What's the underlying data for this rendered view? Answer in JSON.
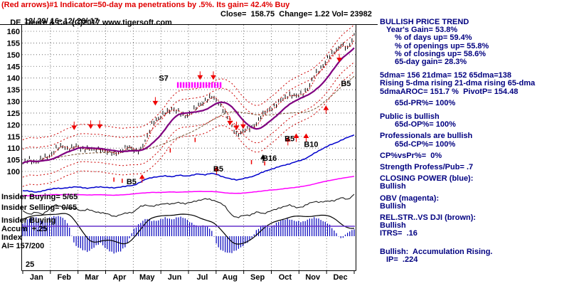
{
  "header": {
    "indicator_line": "(Red arrows)#1 Indicator=50-day ma penetrations by .5%. Its gain= 42.4% Buy",
    "title": "DE  Deere & Co  (C)2017 www.tigersoft.com",
    "quote": "Close=  158.75  Change= 1.22 Vol= 23982",
    "date_range": "12/ 29/ 16- 12/ 26/ 17"
  },
  "left_labels": {
    "insider_buying": "Insider Buying= 5/65",
    "insider_selling": "Insider Selling= 0/65",
    "accum_lines": [
      "Insider Buying",
      "Accum  +.25",
      "Index",
      "AI= 157/200"
    ],
    "bottom_scale": "25"
  },
  "right_panel": {
    "text_color": "#000080",
    "lines": [
      {
        "t": "BULLISH PRICE TREND"
      },
      {
        "t": "Year's Gain= 53.8%"
      },
      {
        "t": "% of days up= 59.4%"
      },
      {
        "t": "% of openings up= 55.8%"
      },
      {
        "t": "% of closings up= 58.6%"
      },
      {
        "t": "65-day gain= 28.3%"
      },
      {
        "t": "5dma= 156 21dma= 152 65dma=138"
      },
      {
        "t": "Rising 5-dma rising 21-dma rising 65-dma"
      },
      {
        "t": "5dmaAROC= 151.7 %  PivotP= 154.48"
      },
      {
        "t": "65d-PR%= 100%"
      },
      {
        "t": "Public is bullish"
      },
      {
        "t": "65d-OP%= 100%"
      },
      {
        "t": "Professionals are bullish"
      },
      {
        "t": "65d-CP%= 100%"
      },
      {
        "t": "CP%vsPr%=  0%"
      },
      {
        "t": "Strength Profess/Pub= .7"
      },
      {
        "t": "CLOSING POWER (blue):"
      },
      {
        "t": "Bullish"
      },
      {
        "t": "OBV (magenta):"
      },
      {
        "t": "Bullish"
      },
      {
        "t": "REL.STR..VS DJI (brown):"
      },
      {
        "t": "Bullish"
      },
      {
        "t": "ITRS=  .16"
      },
      {
        "t": "Bullish:  Accumulation Rising."
      },
      {
        "t": "IP=  .224"
      }
    ]
  },
  "chart_data": {
    "type": "line",
    "symbol": "DE",
    "company": "Deere & Co",
    "close": 158.75,
    "change": 1.22,
    "volume": 23982,
    "date_range": "12/29/16 - 12/26/17",
    "ylim": [
      100,
      160
    ],
    "yticks": [
      100,
      105,
      110,
      115,
      120,
      125,
      130,
      135,
      140,
      145,
      150,
      155,
      160
    ],
    "months": [
      "Jan",
      "Feb",
      "Mar",
      "Apr",
      "May",
      "Jun",
      "Jul",
      "Aug",
      "Sep",
      "Oct",
      "Nov",
      "Dec"
    ],
    "price_weekly": [
      103.5,
      104.8,
      104.2,
      105.5,
      106.2,
      109.8,
      110.5,
      109.9,
      110.8,
      109.5,
      110.2,
      108.9,
      109.6,
      108.4,
      107.2,
      108.8,
      110.3,
      109.5,
      108.7,
      113.5,
      121.8,
      122.5,
      125.5,
      127.0,
      125.0,
      123.8,
      125.5,
      128.0,
      130.5,
      131.8,
      130.2,
      126.0,
      119.5,
      116.0,
      117.2,
      118.5,
      121.0,
      124.5,
      126.8,
      128.5,
      131.0,
      133.2,
      131.8,
      133.5,
      136.0,
      141.5,
      145.0,
      148.5,
      151.5,
      154.5,
      152.0,
      158.75
    ],
    "closing_power": [
      10,
      9,
      8,
      9,
      12,
      14,
      13,
      15,
      16,
      15,
      14,
      15,
      16,
      15,
      14,
      16,
      17,
      18,
      23,
      28,
      31,
      32,
      33,
      32,
      34,
      33,
      34,
      36,
      35,
      37,
      35,
      31,
      28,
      27,
      29,
      31,
      35,
      39,
      43,
      46,
      49,
      52,
      55,
      58,
      63,
      69,
      75,
      80,
      84,
      89,
      93,
      97
    ],
    "obv": [
      20,
      19,
      20,
      21,
      22,
      24,
      23,
      24,
      24,
      23,
      22,
      23,
      23,
      22,
      21,
      22,
      24,
      26,
      29,
      31,
      32,
      32,
      33,
      34,
      33,
      34,
      35,
      36,
      35,
      36,
      34,
      31,
      29,
      28,
      30,
      32,
      35,
      38,
      41,
      43,
      46,
      49,
      52,
      55,
      60,
      66,
      72,
      78,
      82,
      87,
      91,
      95
    ],
    "rel_str": [
      38,
      30,
      36,
      28,
      44,
      56,
      50,
      47,
      46,
      40,
      43,
      37,
      35,
      30,
      24,
      28,
      33,
      36,
      50,
      56,
      52,
      56,
      61,
      58,
      63,
      60,
      63,
      69,
      73,
      70,
      66,
      54,
      30,
      20,
      26,
      28,
      36,
      31,
      39,
      43,
      51,
      56,
      48,
      51,
      59,
      66,
      64,
      66,
      69,
      76,
      71,
      86
    ],
    "accum_index": [
      60,
      82,
      92,
      72,
      86,
      96,
      90,
      58,
      -42,
      -62,
      -72,
      -52,
      -32,
      -62,
      -82,
      -70,
      -42,
      30,
      62,
      82,
      72,
      76,
      86,
      80,
      90,
      84,
      62,
      42,
      52,
      32,
      -52,
      -72,
      -82,
      -62,
      -42,
      -22,
      32,
      52,
      42,
      62,
      76,
      82,
      70,
      66,
      82,
      86,
      76,
      60,
      22,
      -12,
      16,
      32
    ],
    "signal_band": {
      "x0": 0.468,
      "x1": 0.6,
      "price": 137
    },
    "down_arrows": [
      [
        0.155,
        118
      ],
      [
        0.205,
        118.5
      ],
      [
        0.232,
        118.5
      ],
      [
        0.4,
        128.5
      ],
      [
        0.535,
        139.5
      ],
      [
        0.575,
        139.5
      ],
      [
        0.625,
        120
      ],
      [
        0.645,
        118
      ],
      [
        0.665,
        118.5
      ],
      [
        0.955,
        147
      ]
    ],
    "up_arrows": [
      [
        0.36,
        98.5
      ],
      [
        0.585,
        102
      ],
      [
        0.8,
        114.5
      ],
      [
        0.825,
        116
      ],
      [
        0.855,
        116
      ],
      [
        0.915,
        128
      ]
    ],
    "black_arrows": [
      [
        0.725,
        107
      ]
    ],
    "red_ticks": [
      [
        0.275,
        96.5
      ],
      [
        0.3,
        96
      ],
      [
        0.445,
        109
      ],
      [
        0.52,
        113.5
      ],
      [
        0.69,
        104
      ],
      [
        0.73,
        103.5
      ]
    ],
    "annotations": [
      {
        "label": "S7",
        "x": 0.425,
        "yprice": 138.8
      },
      {
        "label": "B5",
        "x": 0.328,
        "yprice": 94.5
      },
      {
        "label": "B5",
        "x": 0.59,
        "yprice": 100
      },
      {
        "label": "B16",
        "x": 0.745,
        "yprice": 104.5
      },
      {
        "label": "B5",
        "x": 0.805,
        "yprice": 113
      },
      {
        "label": "B10",
        "x": 0.87,
        "yprice": 110.5
      },
      {
        "label": "B5",
        "x": 0.975,
        "yprice": 136.5
      }
    ],
    "colors": {
      "price": "#000000",
      "ma21": "#800080",
      "bands": "#cc0000",
      "ma65": "#7a5230",
      "closing_power": "#0000cc",
      "obv": "#ff00ff",
      "rel_str": "#1a1a1a",
      "accum_bars": "#0000bb",
      "ai_line": "#000000",
      "signal_band": "#ff00ff",
      "baseline": "#6633cc",
      "arrow_red": "#ee0000"
    }
  }
}
